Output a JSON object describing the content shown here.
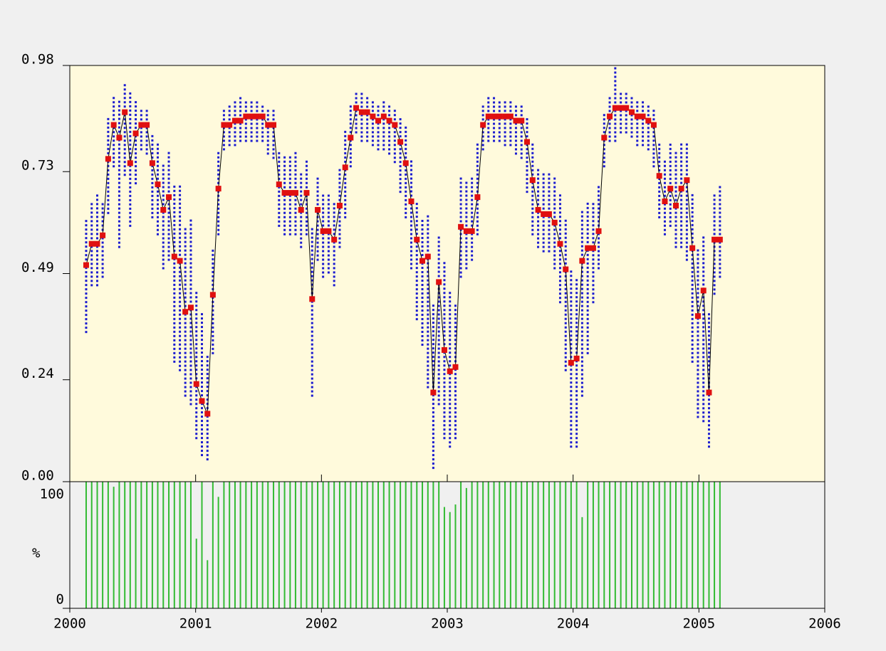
{
  "chart_data": [
    {
      "type": "line",
      "x": [
        2000.13,
        2000.174,
        2000.218,
        2000.261,
        2000.305,
        2000.349,
        2000.393,
        2000.437,
        2000.48,
        2000.524,
        2000.568,
        2000.612,
        2000.656,
        2000.699,
        2000.743,
        2000.787,
        2000.831,
        2000.875,
        2000.918,
        2000.962,
        2001.006,
        2001.05,
        2001.094,
        2001.137,
        2001.181,
        2001.225,
        2001.269,
        2001.313,
        2001.356,
        2001.4,
        2001.444,
        2001.488,
        2001.532,
        2001.575,
        2001.619,
        2001.663,
        2001.707,
        2001.751,
        2001.794,
        2001.838,
        2001.882,
        2001.926,
        2001.97,
        2002.013,
        2002.057,
        2002.101,
        2002.145,
        2002.189,
        2002.232,
        2002.276,
        2002.32,
        2002.364,
        2002.408,
        2002.451,
        2002.495,
        2002.539,
        2002.583,
        2002.627,
        2002.67,
        2002.714,
        2002.758,
        2002.802,
        2002.846,
        2002.889,
        2002.933,
        2002.977,
        2003.021,
        2003.065,
        2003.108,
        2003.152,
        2003.196,
        2003.24,
        2003.284,
        2003.327,
        2003.371,
        2003.415,
        2003.459,
        2003.503,
        2003.546,
        2003.59,
        2003.634,
        2003.678,
        2003.722,
        2003.765,
        2003.809,
        2003.853,
        2003.897,
        2003.941,
        2003.984,
        2004.028,
        2004.072,
        2004.116,
        2004.16,
        2004.203,
        2004.247,
        2004.291,
        2004.335,
        2004.379,
        2004.422,
        2004.466,
        2004.51,
        2004.554,
        2004.598,
        2004.641,
        2004.685,
        2004.729,
        2004.773,
        2004.817,
        2004.86,
        2004.904,
        2004.948,
        2004.992,
        2005.036,
        2005.08,
        2005.123,
        2005.167
      ],
      "values": [
        0.51,
        0.56,
        0.56,
        0.58,
        0.76,
        0.84,
        0.81,
        0.87,
        0.75,
        0.82,
        0.84,
        0.84,
        0.75,
        0.7,
        0.64,
        0.67,
        0.53,
        0.52,
        0.4,
        0.41,
        0.23,
        0.19,
        0.16,
        0.44,
        0.69,
        0.84,
        0.84,
        0.85,
        0.85,
        0.86,
        0.86,
        0.86,
        0.86,
        0.84,
        0.84,
        0.7,
        0.68,
        0.68,
        0.68,
        0.64,
        0.68,
        0.43,
        0.64,
        0.59,
        0.59,
        0.57,
        0.65,
        0.74,
        0.81,
        0.88,
        0.87,
        0.87,
        0.86,
        0.85,
        0.86,
        0.85,
        0.84,
        0.8,
        0.75,
        0.66,
        0.57,
        0.52,
        0.53,
        0.21,
        0.47,
        0.31,
        0.26,
        0.27,
        0.6,
        0.59,
        0.59,
        0.67,
        0.84,
        0.86,
        0.86,
        0.86,
        0.86,
        0.86,
        0.85,
        0.85,
        0.8,
        0.71,
        0.64,
        0.63,
        0.63,
        0.61,
        0.56,
        0.5,
        0.28,
        0.29,
        0.52,
        0.55,
        0.55,
        0.59,
        0.81,
        0.86,
        0.88,
        0.88,
        0.88,
        0.87,
        0.86,
        0.86,
        0.85,
        0.84,
        0.72,
        0.66,
        0.69,
        0.65,
        0.69,
        0.71,
        0.55,
        0.39,
        0.45,
        0.21,
        0.57,
        0.57
      ],
      "high": [
        0.62,
        0.66,
        0.68,
        0.66,
        0.86,
        0.91,
        0.9,
        0.94,
        0.92,
        0.9,
        0.88,
        0.88,
        0.82,
        0.8,
        0.75,
        0.78,
        0.7,
        0.7,
        0.6,
        0.62,
        0.45,
        0.4,
        0.3,
        0.55,
        0.78,
        0.88,
        0.89,
        0.9,
        0.91,
        0.9,
        0.9,
        0.9,
        0.89,
        0.88,
        0.88,
        0.78,
        0.77,
        0.77,
        0.78,
        0.73,
        0.76,
        0.6,
        0.72,
        0.68,
        0.68,
        0.66,
        0.74,
        0.83,
        0.89,
        0.92,
        0.92,
        0.91,
        0.9,
        0.89,
        0.9,
        0.89,
        0.88,
        0.86,
        0.84,
        0.76,
        0.66,
        0.62,
        0.63,
        0.42,
        0.58,
        0.52,
        0.45,
        0.42,
        0.72,
        0.71,
        0.72,
        0.8,
        0.89,
        0.91,
        0.91,
        0.9,
        0.9,
        0.9,
        0.89,
        0.89,
        0.86,
        0.8,
        0.74,
        0.73,
        0.73,
        0.72,
        0.68,
        0.62,
        0.5,
        0.48,
        0.64,
        0.66,
        0.66,
        0.7,
        0.87,
        0.91,
        0.98,
        0.92,
        0.92,
        0.91,
        0.9,
        0.9,
        0.89,
        0.88,
        0.8,
        0.76,
        0.8,
        0.78,
        0.8,
        0.8,
        0.68,
        0.55,
        0.58,
        0.4,
        0.68,
        0.7
      ],
      "low": [
        0.35,
        0.46,
        0.46,
        0.48,
        0.63,
        0.74,
        0.55,
        0.72,
        0.6,
        0.7,
        0.78,
        0.77,
        0.62,
        0.58,
        0.5,
        0.52,
        0.28,
        0.26,
        0.2,
        0.18,
        0.1,
        0.06,
        0.05,
        0.3,
        0.58,
        0.78,
        0.79,
        0.79,
        0.8,
        0.8,
        0.8,
        0.8,
        0.8,
        0.77,
        0.76,
        0.6,
        0.58,
        0.58,
        0.58,
        0.55,
        0.58,
        0.2,
        0.52,
        0.48,
        0.49,
        0.46,
        0.55,
        0.62,
        0.74,
        0.82,
        0.8,
        0.8,
        0.79,
        0.78,
        0.78,
        0.77,
        0.75,
        0.68,
        0.62,
        0.5,
        0.38,
        0.32,
        0.22,
        0.03,
        0.18,
        0.1,
        0.08,
        0.1,
        0.48,
        0.5,
        0.52,
        0.58,
        0.78,
        0.8,
        0.8,
        0.8,
        0.79,
        0.79,
        0.77,
        0.76,
        0.68,
        0.58,
        0.55,
        0.54,
        0.54,
        0.5,
        0.42,
        0.26,
        0.08,
        0.08,
        0.2,
        0.3,
        0.42,
        0.5,
        0.74,
        0.8,
        0.8,
        0.82,
        0.82,
        0.81,
        0.79,
        0.79,
        0.78,
        0.74,
        0.62,
        0.58,
        0.6,
        0.55,
        0.55,
        0.52,
        0.28,
        0.15,
        0.14,
        0.08,
        0.44,
        0.48
      ],
      "color": "#000000",
      "marker_color": "#e01010",
      "range_color": "#1a1ad0",
      "background": "#fffadc",
      "xlim": [
        2000,
        2006
      ],
      "xticks": [
        2001,
        2002,
        2003,
        2004,
        2005
      ],
      "ylim": [
        0,
        0.98
      ],
      "yticks": [
        {
          "value": 0,
          "label": "0.00"
        },
        0.24,
        0.49,
        0.73,
        0.98
      ]
    },
    {
      "type": "bar",
      "ylabel": "%",
      "values": [
        100,
        100,
        100,
        100,
        100,
        96,
        100,
        100,
        100,
        100,
        100,
        100,
        100,
        100,
        100,
        100,
        100,
        100,
        100,
        100,
        55,
        100,
        38,
        100,
        88,
        100,
        100,
        100,
        100,
        100,
        100,
        100,
        100,
        100,
        100,
        100,
        100,
        100,
        100,
        100,
        100,
        100,
        100,
        100,
        100,
        100,
        100,
        100,
        100,
        100,
        100,
        100,
        100,
        100,
        100,
        100,
        100,
        100,
        100,
        100,
        100,
        100,
        100,
        100,
        100,
        80,
        76,
        82,
        100,
        95,
        100,
        100,
        100,
        100,
        100,
        100,
        100,
        100,
        100,
        100,
        100,
        100,
        100,
        100,
        100,
        100,
        100,
        100,
        100,
        100,
        72,
        100,
        100,
        100,
        100,
        100,
        100,
        100,
        100,
        100,
        100,
        100,
        100,
        100,
        100,
        100,
        100,
        100,
        100,
        100,
        100,
        100,
        100,
        100,
        100,
        100
      ],
      "color": "#33bb33",
      "xlim": [
        2000,
        2006
      ],
      "xticks": [
        2000,
        2001,
        2002,
        2003,
        2004,
        2005,
        2006
      ],
      "ylim": [
        0,
        100
      ],
      "yticks": [
        0,
        100
      ]
    }
  ]
}
